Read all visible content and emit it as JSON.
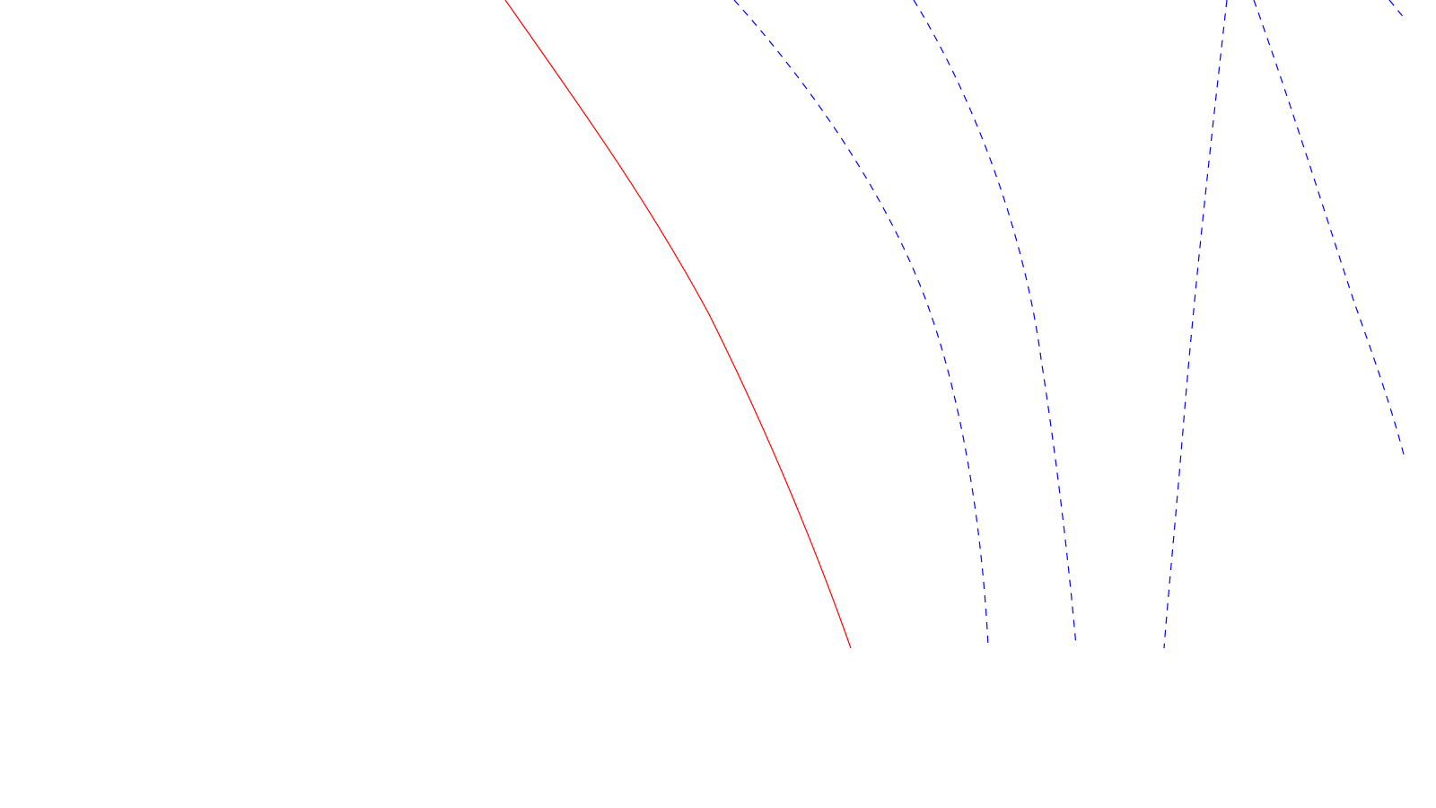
{
  "diagram": {
    "background_color": "#ffffff",
    "curves": [
      {
        "id": "solid-red",
        "style": "solid",
        "color": "#ff0000"
      },
      {
        "id": "dashed-blue-1",
        "style": "dashed",
        "color": "#0000ff"
      },
      {
        "id": "dashed-blue-2",
        "style": "dashed",
        "color": "#0000ff"
      },
      {
        "id": "dashed-blue-3",
        "style": "dashed",
        "color": "#0000ff"
      },
      {
        "id": "dashed-blue-4",
        "style": "dashed",
        "color": "#0000ff"
      }
    ]
  }
}
